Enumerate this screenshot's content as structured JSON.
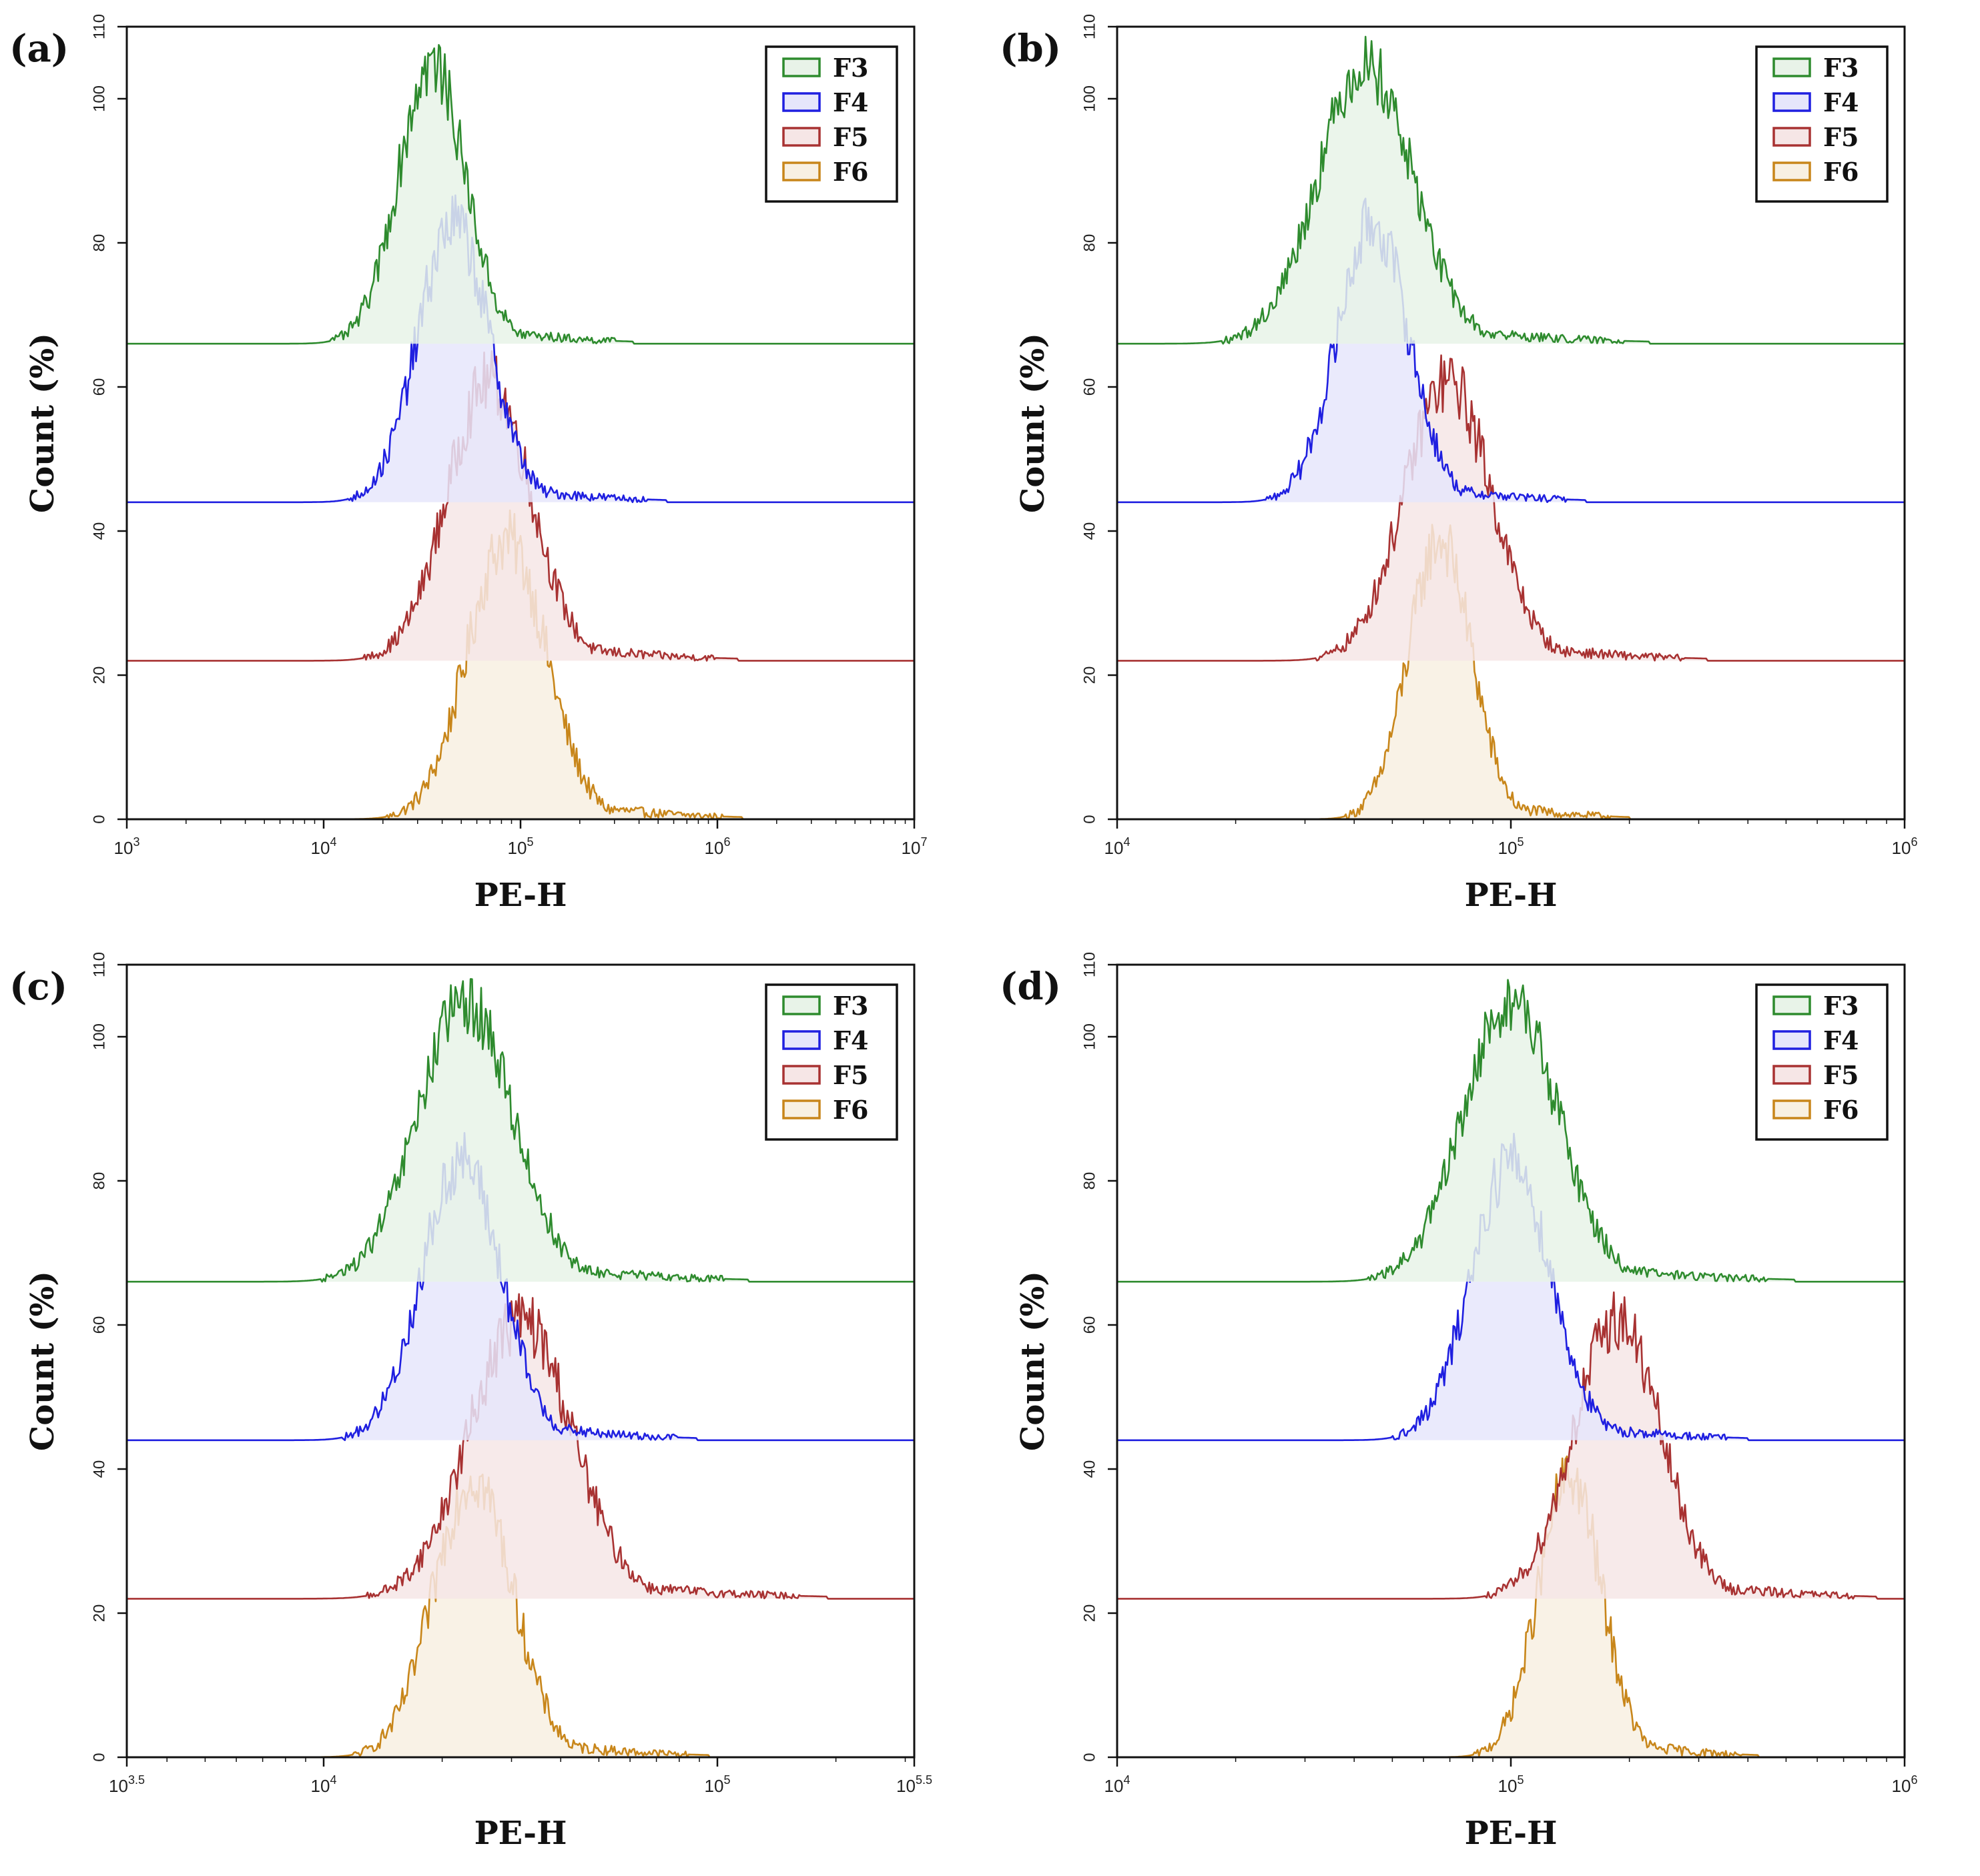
{
  "figure": {
    "series_colors": {
      "F3": "#2e8b2e",
      "F4": "#1f1fe0",
      "F5": "#a83232",
      "F6": "#c8861a"
    },
    "series_fills": {
      "F3": "#e8f3e8",
      "F4": "#e6e6fb",
      "F5": "#f6e6e6",
      "F6": "#f8f0e2"
    }
  },
  "chart_data": [
    {
      "panel": "(a)",
      "type": "area",
      "title": "",
      "xlabel": "PE-H",
      "ylabel": "Count (%)",
      "xscale": "log10",
      "xlim_log10": [
        3,
        7
      ],
      "x_tick_labels": [
        {
          "base": "10",
          "exp": "3",
          "log": 3
        },
        {
          "base": "10",
          "exp": "4",
          "log": 4
        },
        {
          "base": "10",
          "exp": "5",
          "log": 5
        },
        {
          "base": "10",
          "exp": "6",
          "log": 6
        },
        {
          "base": "10",
          "exp": "7",
          "log": 7
        }
      ],
      "ylim": [
        0,
        110
      ],
      "y_ticks": [
        0,
        20,
        40,
        60,
        80,
        100,
        110
      ],
      "y_tick_labels": [
        "0",
        "20",
        "40",
        "60",
        "80",
        "100",
        "110"
      ],
      "legend": [
        "F3",
        "F4",
        "F5",
        "F6"
      ],
      "series": [
        {
          "name": "F3",
          "offset": 66,
          "peak_log10": 4.55,
          "peak_count": 106,
          "sigma": 0.17
        },
        {
          "name": "F4",
          "offset": 44,
          "peak_log10": 4.66,
          "peak_count": 84,
          "sigma": 0.18
        },
        {
          "name": "F5",
          "offset": 22,
          "peak_log10": 4.84,
          "peak_count": 62,
          "sigma": 0.21
        },
        {
          "name": "F6",
          "offset": 0,
          "peak_log10": 4.93,
          "peak_count": 40,
          "sigma": 0.2
        }
      ]
    },
    {
      "panel": "(b)",
      "type": "area",
      "title": "",
      "xlabel": "PE-H",
      "ylabel": "Count (%)",
      "xscale": "log10",
      "xlim_log10": [
        4,
        6
      ],
      "x_tick_labels": [
        {
          "base": "10",
          "exp": "4",
          "log": 4
        },
        {
          "base": "10",
          "exp": "5",
          "log": 5
        },
        {
          "base": "10",
          "exp": "6",
          "log": 6
        }
      ],
      "ylim": [
        0,
        110
      ],
      "y_ticks": [
        0,
        20,
        40,
        60,
        80,
        100,
        110
      ],
      "y_tick_labels": [
        "0",
        "20",
        "40",
        "60",
        "80",
        "100",
        "110"
      ],
      "legend": [
        "F3",
        "F4",
        "F5",
        "F6"
      ],
      "series": [
        {
          "name": "F3",
          "offset": 66,
          "peak_log10": 4.63,
          "peak_count": 106,
          "sigma": 0.12
        },
        {
          "name": "F4",
          "offset": 44,
          "peak_log10": 4.65,
          "peak_count": 84,
          "sigma": 0.09
        },
        {
          "name": "F5",
          "offset": 22,
          "peak_log10": 4.84,
          "peak_count": 62,
          "sigma": 0.11
        },
        {
          "name": "F6",
          "offset": 0,
          "peak_log10": 4.82,
          "peak_count": 40,
          "sigma": 0.08
        }
      ]
    },
    {
      "panel": "(c)",
      "type": "area",
      "title": "",
      "xlabel": "PE-H",
      "ylabel": "Count (%)",
      "xscale": "log10",
      "xlim_log10": [
        3.5,
        5.5
      ],
      "x_tick_labels": [
        {
          "base": "10",
          "exp": "3.5",
          "log": 3.5
        },
        {
          "base": "10",
          "exp": "4",
          "log": 4
        },
        {
          "base": "10",
          "exp": "5",
          "log": 5
        },
        {
          "base": "10",
          "exp": "5.5",
          "log": 5.5
        }
      ],
      "ylim": [
        0,
        110
      ],
      "y_ticks": [
        0,
        20,
        40,
        60,
        80,
        100,
        110
      ],
      "y_tick_labels": [
        "0",
        "20",
        "40",
        "60",
        "80",
        "100",
        "110"
      ],
      "legend": [
        "F3",
        "F4",
        "F5",
        "F6"
      ],
      "series": [
        {
          "name": "F3",
          "offset": 66,
          "peak_log10": 4.36,
          "peak_count": 106,
          "sigma": 0.12
        },
        {
          "name": "F4",
          "offset": 44,
          "peak_log10": 4.35,
          "peak_count": 84,
          "sigma": 0.1
        },
        {
          "name": "F5",
          "offset": 22,
          "peak_log10": 4.5,
          "peak_count": 62,
          "sigma": 0.13
        },
        {
          "name": "F6",
          "offset": 0,
          "peak_log10": 4.38,
          "peak_count": 40,
          "sigma": 0.1
        }
      ]
    },
    {
      "panel": "(d)",
      "type": "area",
      "title": "",
      "xlabel": "PE-H",
      "ylabel": "Count (%)",
      "xscale": "log10",
      "xlim_log10": [
        4,
        6
      ],
      "x_tick_labels": [
        {
          "base": "10",
          "exp": "4",
          "log": 4
        },
        {
          "base": "10",
          "exp": "5",
          "log": 5
        },
        {
          "base": "10",
          "exp": "6",
          "log": 6
        }
      ],
      "ylim": [
        0,
        110
      ],
      "y_ticks": [
        0,
        20,
        40,
        60,
        80,
        100,
        110
      ],
      "y_tick_labels": [
        "0",
        "20",
        "40",
        "60",
        "80",
        "100",
        "110"
      ],
      "legend": [
        "F3",
        "F4",
        "F5",
        "F6"
      ],
      "series": [
        {
          "name": "F3",
          "offset": 66,
          "peak_log10": 5.0,
          "peak_count": 106,
          "sigma": 0.12
        },
        {
          "name": "F4",
          "offset": 44,
          "peak_log10": 5.0,
          "peak_count": 84,
          "sigma": 0.1
        },
        {
          "name": "F5",
          "offset": 22,
          "peak_log10": 5.27,
          "peak_count": 62,
          "sigma": 0.11
        },
        {
          "name": "F6",
          "offset": 0,
          "peak_log10": 5.15,
          "peak_count": 40,
          "sigma": 0.08
        }
      ]
    }
  ]
}
